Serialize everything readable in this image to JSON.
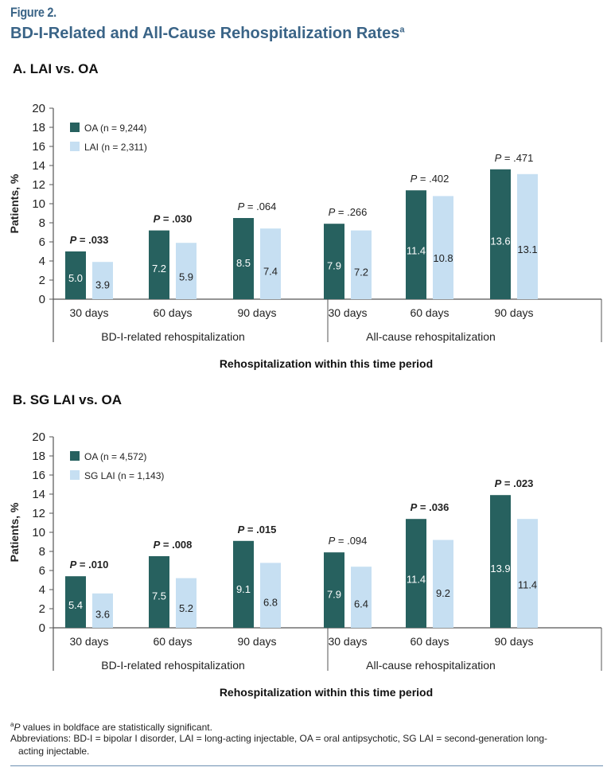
{
  "figure": {
    "label": "Figure 2.",
    "title": "BD-I-Related and All-Cause Rehospitalization Rates",
    "title_superscript": "a"
  },
  "colors": {
    "oa": "#27615f",
    "lai": "#c6dff2",
    "title": "#3a6487"
  },
  "chart_data": [
    {
      "type": "bar",
      "title": "A. LAI vs. OA",
      "ylabel": "Patients, %",
      "xlabel": "Rehospitalization within this time period",
      "ylim": [
        0,
        20
      ],
      "yticks": [
        0,
        2,
        4,
        6,
        8,
        10,
        12,
        14,
        16,
        18,
        20
      ],
      "grid": false,
      "legend_position": "top-left",
      "categories": [
        "30 days",
        "60 days",
        "90 days",
        "30 days",
        "60 days",
        "90 days"
      ],
      "category_groups": [
        {
          "label": "BD-I-related rehospitalization",
          "span": [
            0,
            2
          ]
        },
        {
          "label": "All-cause rehospitalization",
          "span": [
            3,
            5
          ]
        }
      ],
      "series": [
        {
          "name": "OA (n = 9,244)",
          "color_key": "oa",
          "values": [
            5.0,
            7.2,
            8.5,
            7.9,
            11.4,
            13.6
          ],
          "labels": [
            "5.0",
            "7.2",
            "8.5",
            "7.9",
            "11.4",
            "13.6"
          ]
        },
        {
          "name": "LAI (n = 2,311)",
          "color_key": "lai",
          "values": [
            3.9,
            5.9,
            7.4,
            7.2,
            10.8,
            13.1
          ],
          "labels": [
            "3.9",
            "5.9",
            "7.4",
            "7.2",
            "10.8",
            "13.1"
          ]
        }
      ],
      "p_values": [
        {
          "value": ".033",
          "bold": true
        },
        {
          "value": ".030",
          "bold": true
        },
        {
          "value": ".064",
          "bold": false
        },
        {
          "value": ".266",
          "bold": false
        },
        {
          "value": ".402",
          "bold": false
        },
        {
          "value": ".471",
          "bold": false
        }
      ]
    },
    {
      "type": "bar",
      "title": "B. SG LAI vs. OA",
      "ylabel": "Patients, %",
      "xlabel": "Rehospitalization within this time period",
      "ylim": [
        0,
        20
      ],
      "yticks": [
        0,
        2,
        4,
        6,
        8,
        10,
        12,
        14,
        16,
        18,
        20
      ],
      "grid": false,
      "legend_position": "top-left",
      "categories": [
        "30 days",
        "60 days",
        "90 days",
        "30 days",
        "60 days",
        "90 days"
      ],
      "category_groups": [
        {
          "label": "BD-I-related rehospitalization",
          "span": [
            0,
            2
          ]
        },
        {
          "label": "All-cause rehospitalization",
          "span": [
            3,
            5
          ]
        }
      ],
      "series": [
        {
          "name": "OA (n = 4,572)",
          "color_key": "oa",
          "values": [
            5.4,
            7.5,
            9.1,
            7.9,
            11.4,
            13.9
          ],
          "labels": [
            "5.4",
            "7.5",
            "9.1",
            "7.9",
            "11.4",
            "13.9"
          ]
        },
        {
          "name": "SG LAI (n = 1,143)",
          "color_key": "lai",
          "values": [
            3.6,
            5.2,
            6.8,
            6.4,
            9.2,
            11.4
          ],
          "labels": [
            "3.6",
            "5.2",
            "6.8",
            "6.4",
            "9.2",
            "11.4"
          ]
        }
      ],
      "p_values": [
        {
          "value": ".010",
          "bold": true
        },
        {
          "value": ".008",
          "bold": true
        },
        {
          "value": ".015",
          "bold": true
        },
        {
          "value": ".094",
          "bold": false
        },
        {
          "value": ".036",
          "bold": true
        },
        {
          "value": ".023",
          "bold": true
        }
      ]
    }
  ],
  "p_prefix": "P",
  "p_equals": " = ",
  "footnotes": {
    "superscript": "a",
    "significance_p": "P",
    "significance_text": " values in boldface are statistically significant.",
    "abbreviations_line1": "Abbreviations: BD-I = bipolar I disorder, LAI = long-acting injectable, OA = oral antipsychotic, SG LAI = second-generation long-",
    "abbreviations_line2": "acting injectable."
  }
}
